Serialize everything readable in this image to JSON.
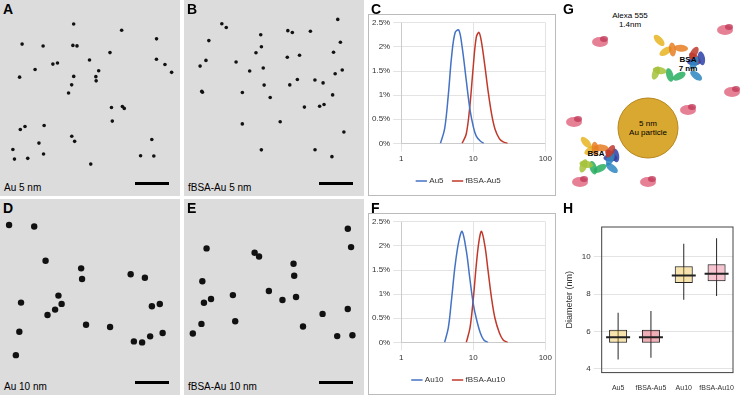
{
  "micrographs": [
    {
      "panel": "A",
      "label": "Au 5 nm"
    },
    {
      "panel": "B",
      "label": "fBSA-Au 5 nm"
    },
    {
      "panel": "D",
      "label": "Au 10 nm"
    },
    {
      "panel": "E",
      "label": "fBSA-Au 10 nm"
    }
  ],
  "diagram": {
    "panel": "G",
    "fluorophore": [
      "Alexa 555",
      "1.4nm"
    ],
    "protein_top": [
      "BSA",
      "7 nm"
    ],
    "protein_left": [
      "BSA"
    ],
    "particle": [
      "5 nm",
      "Au particle"
    ]
  },
  "chart_data": [
    {
      "panel": "C",
      "type": "line",
      "log": "x",
      "grid": true,
      "legend": "bottom",
      "xlim": [
        1,
        100
      ],
      "xticks": [
        1,
        10,
        100
      ],
      "ylim": [
        0,
        2.5
      ],
      "yticks": [
        {
          "value": 0,
          "label": "0%"
        },
        {
          "value": 0.5,
          "label": "0.5%"
        },
        {
          "value": 1,
          "label": "1%"
        },
        {
          "value": 1.5,
          "label": "1.5%"
        },
        {
          "value": 2,
          "label": "2%"
        },
        {
          "value": 2.5,
          "label": "2.5%"
        }
      ],
      "series": [
        {
          "name": "Au5",
          "color": "#4472c4",
          "x": [
            3.5,
            4,
            4.5,
            5,
            5.6,
            6.3,
            7,
            8,
            9,
            10,
            11,
            12.5,
            14
          ],
          "values": [
            0,
            0.3,
            1.0,
            1.8,
            2.3,
            2.35,
            2.0,
            1.3,
            0.7,
            0.35,
            0.15,
            0.05,
            0
          ]
        },
        {
          "name": "fBSA-Au5",
          "color": "#c0392b",
          "x": [
            7,
            8,
            9,
            10,
            11,
            12,
            13,
            14.5,
            16,
            18,
            20,
            23,
            26,
            30
          ],
          "values": [
            0,
            0.2,
            0.8,
            1.6,
            2.2,
            2.3,
            2.1,
            1.6,
            1.1,
            0.6,
            0.3,
            0.1,
            0.03,
            0
          ]
        }
      ]
    },
    {
      "panel": "F",
      "type": "line",
      "log": "x",
      "grid": true,
      "legend": "bottom",
      "xlim": [
        1,
        100
      ],
      "xticks": [
        1,
        10,
        100
      ],
      "ylim": [
        0,
        2.5
      ],
      "yticks": [
        {
          "value": 0,
          "label": "0%"
        },
        {
          "value": 0.5,
          "label": "0.5%"
        },
        {
          "value": 1,
          "label": "1%"
        },
        {
          "value": 1.5,
          "label": "1.5%"
        },
        {
          "value": 2,
          "label": "2%"
        },
        {
          "value": 2.5,
          "label": "2.5%"
        }
      ],
      "series": [
        {
          "name": "Au10",
          "color": "#4472c4",
          "x": [
            4,
            4.5,
            5,
            5.6,
            6.3,
            7,
            8,
            9,
            10,
            11,
            12.5,
            14,
            16
          ],
          "values": [
            0,
            0.3,
            0.9,
            1.6,
            2.1,
            2.3,
            1.9,
            1.3,
            0.8,
            0.5,
            0.2,
            0.05,
            0
          ]
        },
        {
          "name": "fBSA-Au10",
          "color": "#c0392b",
          "x": [
            8,
            9,
            10,
            11,
            12,
            13,
            14.5,
            16,
            18,
            20,
            23,
            26,
            30
          ],
          "values": [
            0,
            0.3,
            0.9,
            1.6,
            2.1,
            2.3,
            2.0,
            1.5,
            0.9,
            0.5,
            0.2,
            0.05,
            0
          ]
        }
      ]
    },
    {
      "panel": "H",
      "type": "box",
      "grid": true,
      "categories": [
        "Au5",
        "fBSA-Au5",
        "Au10",
        "fBSA-Au10"
      ],
      "colors": [
        "#e8b931",
        "#d9344a",
        "#e8b931",
        "#e86a8a"
      ],
      "ylabel": "Diameter (nm)",
      "ylim": [
        3.8,
        11.6
      ],
      "yticks": [
        4,
        6,
        8,
        10
      ],
      "min": [
        4.5,
        4.6,
        7.7,
        7.9
      ],
      "q1": [
        5.4,
        5.4,
        8.6,
        8.7
      ],
      "median": [
        5.7,
        5.7,
        9.0,
        9.1
      ],
      "q3": [
        6.1,
        6.1,
        9.5,
        9.6
      ],
      "max": [
        7.0,
        7.1,
        10.7,
        11.0
      ]
    }
  ]
}
